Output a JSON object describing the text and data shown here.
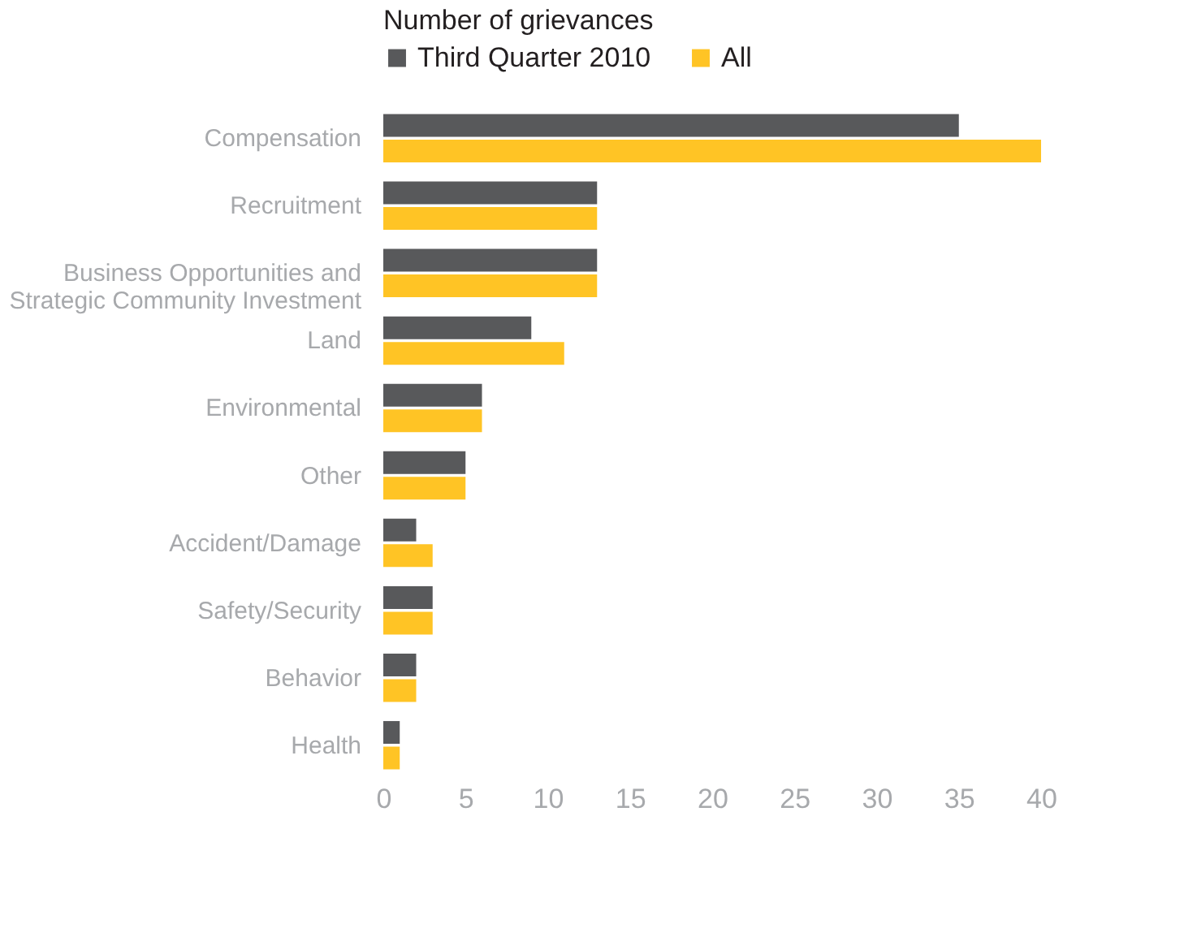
{
  "chart_data": {
    "type": "bar",
    "orientation": "horizontal",
    "legend_title": "Number of grievances",
    "legend": "top",
    "categories": [
      "Compensation",
      "Recruitment",
      "Business Opportunities and\nStrategic Community Investment",
      "Land",
      "Environmental",
      "Other",
      "Accident/Damage",
      "Safety/Security",
      "Behavior",
      "Health"
    ],
    "series": [
      {
        "name": "Third Quarter 2010",
        "color": "#58595b",
        "values": [
          35,
          13,
          13,
          9,
          6,
          5,
          2,
          3,
          2,
          1
        ]
      },
      {
        "name": "All",
        "color": "#ffc425",
        "values": [
          40,
          13,
          13,
          11,
          6,
          5,
          3,
          3,
          2,
          1
        ]
      }
    ],
    "xlim": [
      0,
      40
    ],
    "xticks": [
      0,
      5,
      10,
      15,
      20,
      25,
      30,
      35,
      40
    ],
    "grid": false
  }
}
